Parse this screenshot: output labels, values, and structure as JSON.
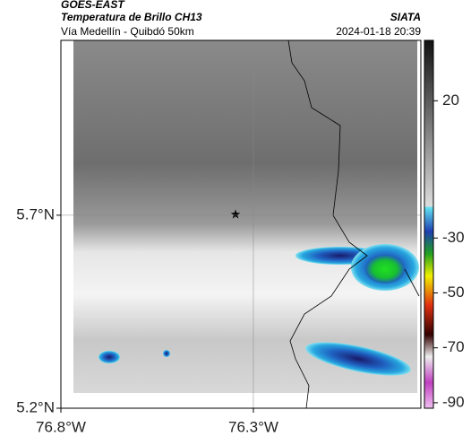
{
  "chart_data": {
    "type": "map",
    "title": "GOES-EAST",
    "subtitle": "Temperatura de Brillo CH13",
    "region": "Vía Medellín - Quibdó 50km",
    "source": "SIATA",
    "timestamp": "2024-01-18 20:39",
    "xlim": [
      -76.8,
      -75.865
    ],
    "ylim": [
      5.2,
      6.153
    ],
    "xticks": [
      {
        "value": -76.8,
        "label": "76.8°W"
      },
      {
        "value": -76.3,
        "label": "76.3°W"
      }
    ],
    "yticks": [
      {
        "value": 5.2,
        "label": "5.2°N"
      },
      {
        "value": 5.7,
        "label": "5.7°N"
      }
    ],
    "grid": true,
    "clim": [
      -92,
      42
    ],
    "cticks": [
      20,
      -30,
      -50,
      -70,
      -90
    ]
  }
}
